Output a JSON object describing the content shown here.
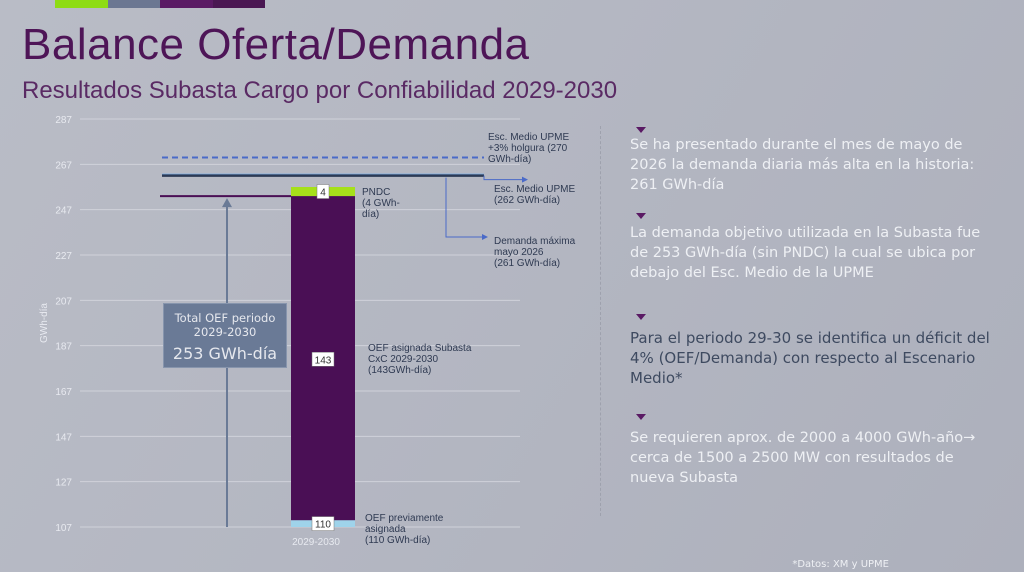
{
  "title": "Balance Oferta/Demanda",
  "subtitle": "Resultados Subasta Cargo por Confiabilidad 2029-2030",
  "colors": {
    "accent_bars": [
      "#8edc14",
      "#6b7792",
      "#5a1a64",
      "#4a1752"
    ],
    "bar_main": "#4a0f55",
    "bar_pndc": "#a6e01a",
    "bar_prev": "#9fd3ea",
    "line_escmedio": "#2c3a55",
    "line_demanda": "#4a0f55",
    "line_holgura": "#4a6ac8",
    "arrow": "#4a6ac8",
    "total_box": "#6a7a96"
  },
  "chart_data": {
    "type": "bar",
    "ylabel": "GWh-día",
    "ylim": [
      107,
      287
    ],
    "yticks": [
      107,
      127,
      147,
      167,
      187,
      207,
      227,
      247,
      267,
      287
    ],
    "categories": [
      "2029-2030"
    ],
    "stack": [
      {
        "key": "prev",
        "from": 107,
        "to": 110,
        "label_value": "110",
        "annotation": [
          "OEF previamente",
          "asignada",
          "(110 GWh-día)"
        ]
      },
      {
        "key": "main",
        "from": 110,
        "to": 253,
        "label_value": "143",
        "annotation": [
          "OEF asignada Subasta",
          "CxC 2029-2030",
          "(143GWh-día)"
        ]
      },
      {
        "key": "pndc",
        "from": 253,
        "to": 257,
        "label_value": "4",
        "annotation": [
          "PNDC",
          "(4 GWh-",
          "día)"
        ]
      }
    ],
    "reference_lines": [
      {
        "key": "holgura",
        "value": 270,
        "style": "dashed",
        "annotation": [
          "Esc. Medio UPME",
          "+3% holgura (270",
          "GWh-día)"
        ]
      },
      {
        "key": "escmedio",
        "value": 262,
        "style": "solid",
        "annotation": [
          "Esc. Medio UPME",
          "(262 GWh-día)"
        ]
      },
      {
        "key": "demanda",
        "value": 261,
        "style": "solid",
        "annotation": [
          "Demanda máxima",
          "mayo 2026",
          "(261 GWh-día)"
        ]
      },
      {
        "key": "total",
        "value": 253,
        "style": "solid"
      }
    ],
    "total_label": [
      "Total OEF periodo",
      "2029-2030"
    ],
    "total_value": "253 GWh-día"
  },
  "notes": [
    {
      "text": "Se ha presentado durante el mes de mayo de 2026 la demanda diaria más alta en la historia: 261 GWh-día",
      "strong": false
    },
    {
      "text": "La demanda objetivo utilizada en la Subasta fue de 253 GWh-día (sin PNDC) la cual se ubica por debajo del Esc. Medio de la UPME",
      "strong": false
    },
    {
      "text": "Para el periodo 29-30 se identifica un déficit del 4% (OEF/Demanda) con respecto al Escenario Medio*",
      "strong": true
    },
    {
      "text": "Se requieren aprox. de 2000 a 4000 GWh-año→ cerca de 1500 a 2500 MW con resultados de nueva Subasta",
      "strong": false
    }
  ],
  "footnote": "*Datos: XM y UPME"
}
